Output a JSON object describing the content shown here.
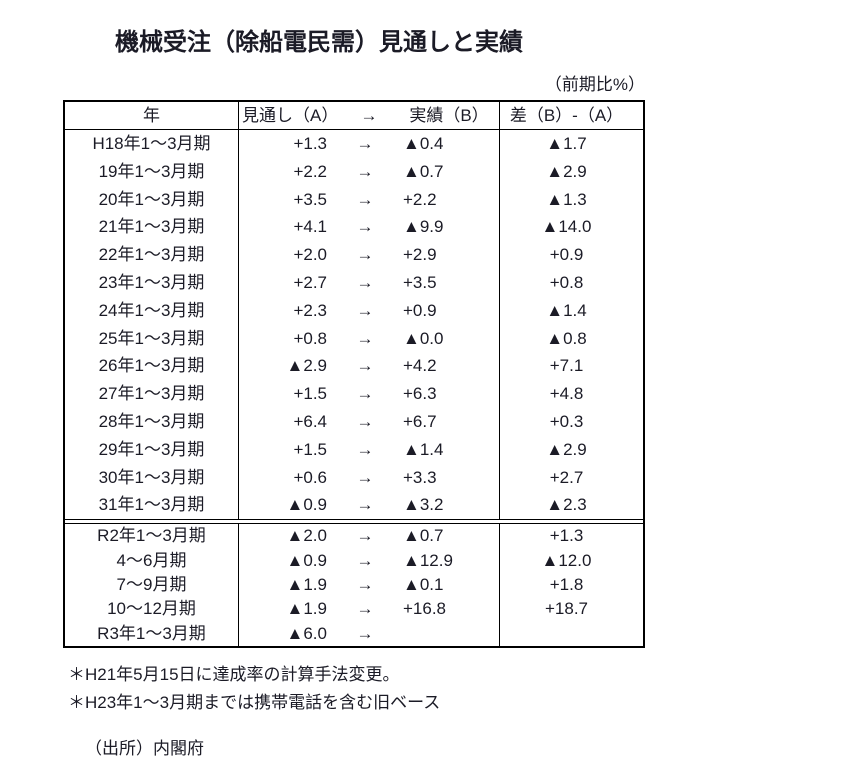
{
  "title": "機械受注（除船電民需）見通しと実績",
  "unit_note": "（前期比%）",
  "colors": {
    "text": "#1b1b26",
    "border": "#000000",
    "background": "#ffffff"
  },
  "table": {
    "headers": {
      "year": "年",
      "forecast": "見通し（A）",
      "arrow": "→",
      "actual": "実績（B）",
      "diff": "差（B）-（A）"
    },
    "sections": [
      {
        "name": "heisei-section",
        "rows": [
          {
            "year": "H18年1～3月期",
            "forecast": "+1.3",
            "arrow": "→",
            "actual": "▲0.4",
            "diff": "▲1.7"
          },
          {
            "year": "19年1～3月期",
            "forecast": "+2.2",
            "arrow": "→",
            "actual": "▲0.7",
            "diff": "▲2.9"
          },
          {
            "year": "20年1～3月期",
            "forecast": "+3.5",
            "arrow": "→",
            "actual": "+2.2",
            "diff": "▲1.3"
          },
          {
            "year": "21年1～3月期",
            "forecast": "+4.1",
            "arrow": "→",
            "actual": "▲9.9",
            "diff": "▲14.0"
          },
          {
            "year": "22年1～3月期",
            "forecast": "+2.0",
            "arrow": "→",
            "actual": "+2.9",
            "diff": "+0.9"
          },
          {
            "year": "23年1～3月期",
            "forecast": "+2.7",
            "arrow": "→",
            "actual": "+3.5",
            "diff": "+0.8"
          },
          {
            "year": "24年1～3月期",
            "forecast": "+2.3",
            "arrow": "→",
            "actual": "+0.9",
            "diff": "▲1.4"
          },
          {
            "year": "25年1～3月期",
            "forecast": "+0.8",
            "arrow": "→",
            "actual": "▲0.0",
            "diff": "▲0.8"
          },
          {
            "year": "26年1～3月期",
            "forecast": "▲2.9",
            "arrow": "→",
            "actual": "+4.2",
            "diff": "+7.1"
          },
          {
            "year": "27年1～3月期",
            "forecast": "+1.5",
            "arrow": "→",
            "actual": "+6.3",
            "diff": "+4.8"
          },
          {
            "year": "28年1～3月期",
            "forecast": "+6.4",
            "arrow": "→",
            "actual": "+6.7",
            "diff": "+0.3"
          },
          {
            "year": "29年1～3月期",
            "forecast": "+1.5",
            "arrow": "→",
            "actual": "▲1.4",
            "diff": "▲2.9"
          },
          {
            "year": "30年1～3月期",
            "forecast": "+0.6",
            "arrow": "→",
            "actual": "+3.3",
            "diff": "+2.7"
          },
          {
            "year": "31年1～3月期",
            "forecast": "▲0.9",
            "arrow": "→",
            "actual": "▲3.2",
            "diff": "▲2.3"
          }
        ]
      },
      {
        "name": "reiwa-section",
        "rows": [
          {
            "year": "R2年1～3月期",
            "forecast": "▲2.0",
            "arrow": "→",
            "actual": "▲0.7",
            "diff": "+1.3"
          },
          {
            "year": "4～6月期",
            "forecast": "▲0.9",
            "arrow": "→",
            "actual": "▲12.9",
            "diff": "▲12.0"
          },
          {
            "year": "7～9月期",
            "forecast": "▲1.9",
            "arrow": "→",
            "actual": "▲0.1",
            "diff": "+1.8"
          },
          {
            "year": "10～12月期",
            "forecast": "▲1.9",
            "arrow": "→",
            "actual": "+16.8",
            "diff": "+18.7"
          },
          {
            "year": "R3年1～3月期",
            "forecast": "▲6.0",
            "arrow": "→",
            "actual": "",
            "diff": ""
          }
        ]
      }
    ]
  },
  "footnotes": [
    "＊H21年5月15日に達成率の計算手法変更。",
    "＊H23年1～3月期までは携帯電話を含む旧ベース"
  ],
  "source": "（出所）内閣府"
}
